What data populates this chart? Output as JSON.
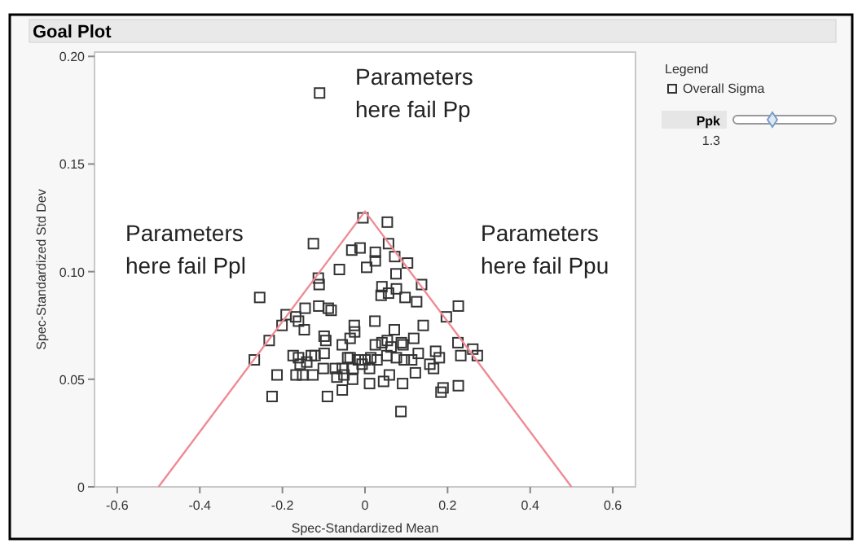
{
  "chart_data": {
    "type": "scatter",
    "title": "Goal Plot",
    "xlabel": "Spec-Standardized Mean",
    "ylabel": "Spec-Standardized Std Dev",
    "legend_title": "Legend",
    "legend": "top right",
    "xlim": [
      -0.655,
      0.655
    ],
    "ylim": [
      0,
      0.202
    ],
    "xticks": [
      -0.6,
      -0.4,
      -0.2,
      {
        "value": 0,
        "label": "0"
      },
      0.2,
      0.4,
      0.6
    ],
    "yticks": [
      {
        "value": 0,
        "label": "0"
      },
      0.05,
      {
        "value": 0.1,
        "label": "0.10"
      },
      0.15,
      {
        "value": 0.2,
        "label": "0.20"
      }
    ],
    "annotations": [
      "Parameters here fail Pp",
      "Parameters here fail Ppl",
      "Parameters here fail Ppu",
      "Ppk",
      "1.3"
    ],
    "series": [
      {
        "name": "Overall Sigma",
        "color": "#333333",
        "marker": "square",
        "x": [
          -0.005,
          0.054,
          -0.125,
          -0.032,
          -0.012,
          0.025,
          0.057,
          0.072,
          0.103,
          0.004,
          0.025,
          -0.062,
          0.075,
          -0.113,
          -0.111,
          -0.255,
          0.041,
          0.039,
          0.057,
          0.076,
          0.097,
          0.125,
          0.137,
          0.226,
          0.197,
          -0.112,
          -0.089,
          -0.082,
          -0.145,
          -0.191,
          -0.168,
          -0.161,
          -0.147,
          -0.201,
          -0.232,
          0.024,
          -0.026,
          0.141,
          0.071,
          -0.025,
          -0.099,
          -0.095,
          -0.055,
          -0.036,
          0.025,
          0.041,
          0.054,
          0.063,
          0.088,
          0.118,
          0.092,
          0.225,
          0.261,
          0.232,
          0.272,
          -0.161,
          -0.13,
          -0.121,
          -0.099,
          -0.174,
          -0.157,
          -0.141,
          -0.101,
          -0.126,
          -0.167,
          -0.151,
          -0.213,
          -0.268,
          -0.042,
          -0.016,
          0.0,
          0.014,
          0.029,
          0.053,
          0.076,
          0.095,
          0.113,
          0.129,
          0.171,
          0.18,
          0.157,
          0.166,
          0.122,
          -0.055,
          -0.051,
          -0.029,
          -0.007,
          0.011,
          0.011,
          0.045,
          0.059,
          0.091,
          0.189,
          0.226,
          0.184,
          -0.225,
          -0.03,
          -0.068,
          -0.036,
          -0.072,
          -0.11,
          -0.091,
          -0.055,
          0.087
        ],
        "values": [
          0.125,
          0.123,
          0.113,
          0.11,
          0.111,
          0.109,
          0.113,
          0.107,
          0.104,
          0.102,
          0.105,
          0.101,
          0.099,
          0.097,
          0.094,
          0.088,
          0.093,
          0.089,
          0.09,
          0.092,
          0.088,
          0.086,
          0.094,
          0.084,
          0.079,
          0.084,
          0.083,
          0.082,
          0.083,
          0.08,
          0.079,
          0.077,
          0.073,
          0.075,
          0.068,
          0.077,
          0.075,
          0.075,
          0.073,
          0.072,
          0.07,
          0.068,
          0.066,
          0.069,
          0.066,
          0.067,
          0.068,
          0.065,
          0.067,
          0.069,
          0.066,
          0.067,
          0.064,
          0.061,
          0.061,
          0.06,
          0.061,
          0.061,
          0.062,
          0.061,
          0.057,
          0.058,
          0.055,
          0.052,
          0.052,
          0.052,
          0.052,
          0.059,
          0.06,
          0.059,
          0.059,
          0.06,
          0.059,
          0.061,
          0.06,
          0.059,
          0.059,
          0.062,
          0.063,
          0.06,
          0.057,
          0.055,
          0.053,
          0.055,
          0.052,
          0.055,
          0.057,
          0.055,
          0.048,
          0.049,
          0.052,
          0.048,
          0.046,
          0.047,
          0.044,
          0.042,
          0.05,
          0.051,
          0.06,
          0.055,
          0.183,
          0.042,
          0.045,
          0.035
        ]
      },
      {
        "type": "line",
        "marker": "none",
        "color": "#f08a94",
        "x": [
          -0.5,
          0,
          0.5
        ],
        "values": [
          0,
          0.128,
          0
        ]
      }
    ]
  }
}
